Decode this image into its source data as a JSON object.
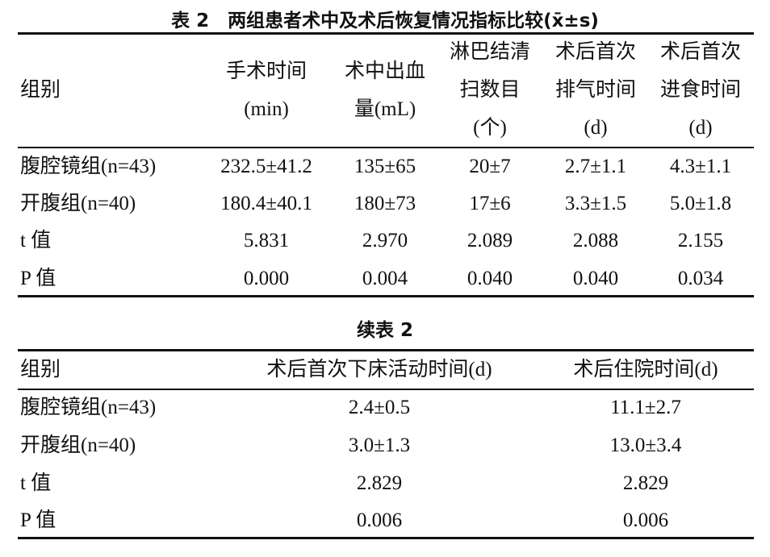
{
  "table1": {
    "title": "表 2　两组患者术中及术后恢复情况指标比较(x̄±s)",
    "header": [
      [
        "组别"
      ],
      [
        "手术时间",
        "(min)"
      ],
      [
        "术中出血",
        "量(mL)"
      ],
      [
        "淋巴结清",
        "扫数目",
        "(个)"
      ],
      [
        "术后首次",
        "排气时间",
        "(d)"
      ],
      [
        "术后首次",
        "进食时间",
        "(d)"
      ]
    ],
    "rows": [
      [
        "腹腔镜组(n=43)",
        "232.5±41.2",
        "135±65",
        "20±7",
        "2.7±1.1",
        "4.3±1.1"
      ],
      [
        "开腹组(n=40)",
        "180.4±40.1",
        "180±73",
        "17±6",
        "3.3±1.5",
        "5.0±1.8"
      ],
      [
        "t 值",
        "5.831",
        "2.970",
        "2.089",
        "2.088",
        "2.155"
      ],
      [
        "P 值",
        "0.000",
        "0.004",
        "0.040",
        "0.040",
        "0.034"
      ]
    ]
  },
  "table2": {
    "title": "续表 2",
    "header": [
      "组别",
      "术后首次下床活动时间(d)",
      "术后住院时间(d)"
    ],
    "rows": [
      [
        "腹腔镜组(n=43)",
        "2.4±0.5",
        "11.1±2.7"
      ],
      [
        "开腹组(n=40)",
        "3.0±1.3",
        "13.0±3.4"
      ],
      [
        "t 值",
        "2.829",
        "2.829"
      ],
      [
        "P 值",
        "0.006",
        "0.006"
      ]
    ]
  }
}
